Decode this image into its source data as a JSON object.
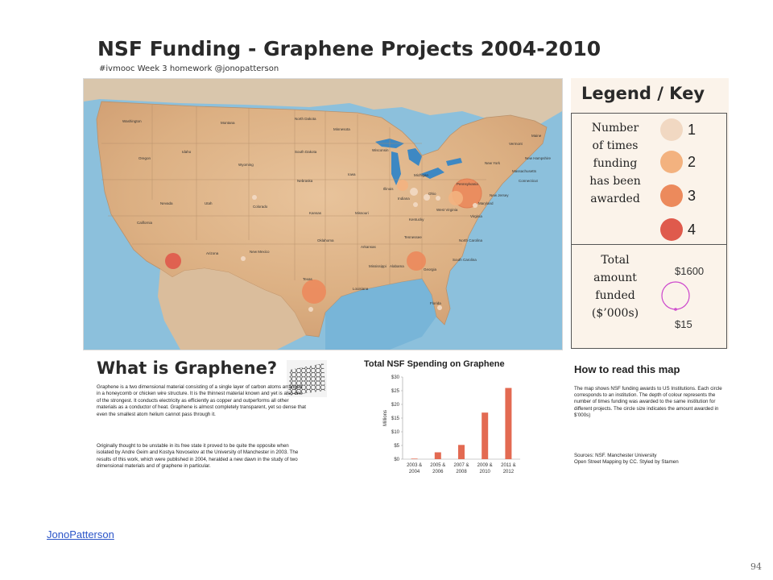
{
  "poster": {
    "title": "NSF Funding - Graphene Projects 2004-2010",
    "subtitle": "#ivmooc Week 3 homework @jonopatterson"
  },
  "map": {
    "states": [
      "Washington",
      "Montana",
      "North Dakota",
      "Minnesota",
      "Oregon",
      "Idaho",
      "South Dakota",
      "Wisconsin",
      "Michigan",
      "Wyoming",
      "Nebraska",
      "Iowa",
      "Illinois",
      "Indiana",
      "Ohio",
      "Pennsylvania",
      "New York",
      "Vermont",
      "Maine",
      "New Hampshire",
      "Massachusetts",
      "Connecticut",
      "New Jersey",
      "Nevada",
      "Utah",
      "Colorado",
      "Kansas",
      "Missouri",
      "Kentucky",
      "West Virginia",
      "Virginia",
      "Maryland",
      "California",
      "Arizona",
      "New Mexico",
      "Oklahoma",
      "Arkansas",
      "Tennessee",
      "North Carolina",
      "South Carolina",
      "Texas",
      "Louisiana",
      "Mississippi",
      "Alabama",
      "Georgia",
      "Florida"
    ],
    "bubble_colors": {
      "1": "#f1d8c2",
      "2": "#f3b27f",
      "3": "#ec8a5c",
      "4": "#df5a4c"
    }
  },
  "legend": {
    "title": "Legend / Key",
    "count_label_lines": [
      "Number",
      "of times",
      "funding",
      "has been",
      "awarded"
    ],
    "levels": [
      {
        "label": "1",
        "color": "#f1d8c2"
      },
      {
        "label": "2",
        "color": "#f3b27f"
      },
      {
        "label": "3",
        "color": "#ec8a5c"
      },
      {
        "label": "4",
        "color": "#df5a4c"
      }
    ],
    "amount_label_lines": [
      "Total",
      "amount",
      "funded",
      "($’000s)"
    ],
    "amount_max": "$1600",
    "amount_min": "$15"
  },
  "graphene": {
    "title": "What is Graphene?",
    "paragraph1": "Graphene is a two dimensional material consisting of a single layer of carbon atoms arranged in a honeycomb or chicken wire structure. It is the thinnest material known and yet is also one of the strongest. It conducts electricity as efficiently as copper and outperforms all other materials as a conductor of heat. Graphene is almost completely transparent, yet so dense that even the smallest atom helium cannot pass through it.",
    "paragraph2": "Originally thought to be unstable in its free state it proved to be quite the opposite when isolated by Andre Geim and Kostya Novoselov at the University of Manchester in 2003. The results of this work, which were published in 2004, heralded a new dawn in the study of two dimensional materials and of graphene in particular."
  },
  "chart_data": {
    "type": "bar",
    "title": "Total NSF Spending on Graphene",
    "ylabel": "Millions",
    "categories": [
      "2003 & 2004",
      "2005 & 2006",
      "2007 & 2008",
      "2009 & 2010",
      "2011 & 2012"
    ],
    "category_lines": [
      [
        "2003 &",
        "2004"
      ],
      [
        "2005 &",
        "2006"
      ],
      [
        "2007 &",
        "2008"
      ],
      [
        "2009 &",
        "2010"
      ],
      [
        "2011 &",
        "2012"
      ]
    ],
    "values": [
      0.2,
      2.5,
      5.2,
      17,
      26
    ],
    "ylim": [
      0,
      30
    ],
    "yticks": [
      "$0",
      "$5",
      "$10",
      "$15",
      "$20",
      "$25",
      "$30"
    ],
    "bar_color": "#e36a52"
  },
  "howto": {
    "title": "How to read this map",
    "text": "The map shows NSF funding awards to US Institutions. Each circle corresponds to an institution. The depth of colour represents the number of times funding was awarded to the same institution for different projects. The circle size indicates the amount awarded in $’000s)",
    "sources_line1": "Sources: NSF. Manchester University",
    "sources_line2": "Open Street Mapping by CC. Styled by Stamen"
  },
  "footer": {
    "link_text": "JonoPatterson",
    "page_number": "94"
  }
}
